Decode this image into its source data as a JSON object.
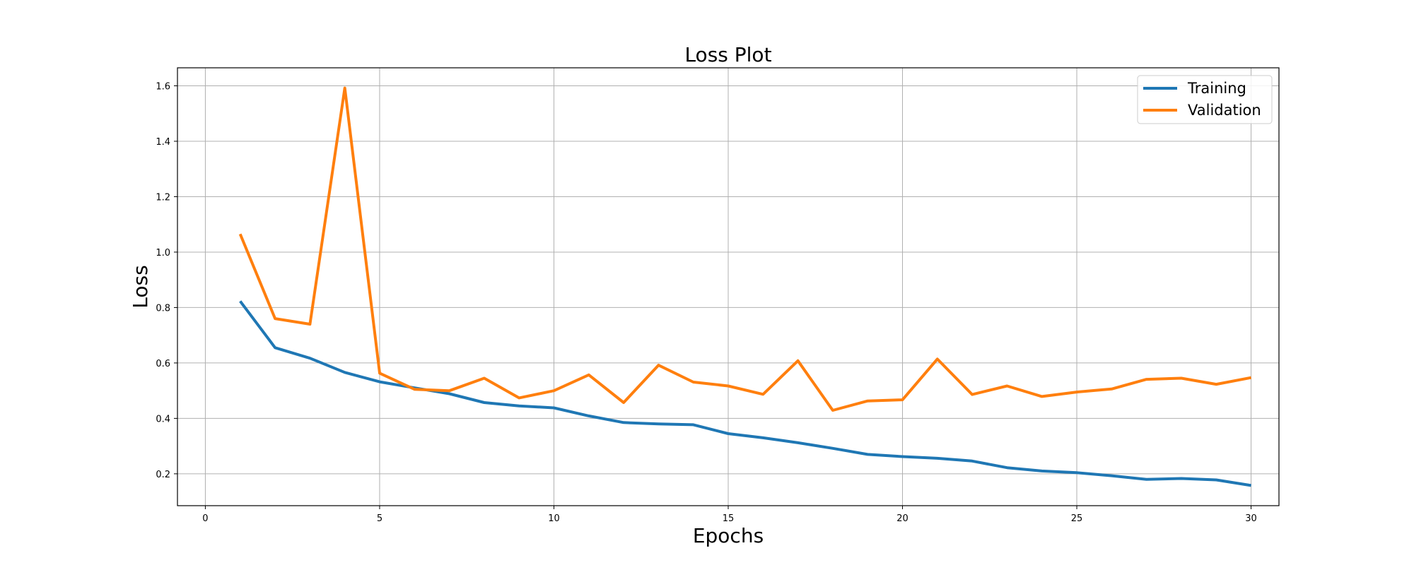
{
  "chart_data": {
    "type": "line",
    "title": "Loss Plot",
    "xlabel": "Epochs",
    "ylabel": "Loss",
    "xlim": [
      -0.8,
      30.8
    ],
    "ylim": [
      0.085,
      1.665
    ],
    "xticks": [
      0,
      5,
      10,
      15,
      20,
      25,
      30
    ],
    "yticks": [
      0.2,
      0.4,
      0.6,
      0.8,
      1.0,
      1.2,
      1.4,
      1.6
    ],
    "grid": true,
    "legend_position": "top-right",
    "x": [
      1,
      2,
      3,
      4,
      5,
      6,
      7,
      8,
      9,
      10,
      11,
      12,
      13,
      14,
      15,
      16,
      17,
      18,
      19,
      20,
      21,
      22,
      23,
      24,
      25,
      26,
      27,
      28,
      29,
      30
    ],
    "series": [
      {
        "name": "Training",
        "color": "#1f77b4",
        "values": [
          0.823,
          0.655,
          0.617,
          0.566,
          0.532,
          0.51,
          0.489,
          0.457,
          0.445,
          0.438,
          0.409,
          0.385,
          0.38,
          0.377,
          0.345,
          0.33,
          0.312,
          0.292,
          0.27,
          0.262,
          0.256,
          0.246,
          0.222,
          0.21,
          0.204,
          0.193,
          0.18,
          0.183,
          0.178,
          0.158
        ]
      },
      {
        "name": "Validation",
        "color": "#ff7f0e",
        "values": [
          1.065,
          0.76,
          0.74,
          1.592,
          0.563,
          0.505,
          0.5,
          0.545,
          0.474,
          0.5,
          0.557,
          0.457,
          0.592,
          0.531,
          0.517,
          0.487,
          0.608,
          0.429,
          0.463,
          0.467,
          0.614,
          0.486,
          0.517,
          0.479,
          0.495,
          0.506,
          0.541,
          0.545,
          0.523,
          0.547
        ]
      }
    ]
  }
}
